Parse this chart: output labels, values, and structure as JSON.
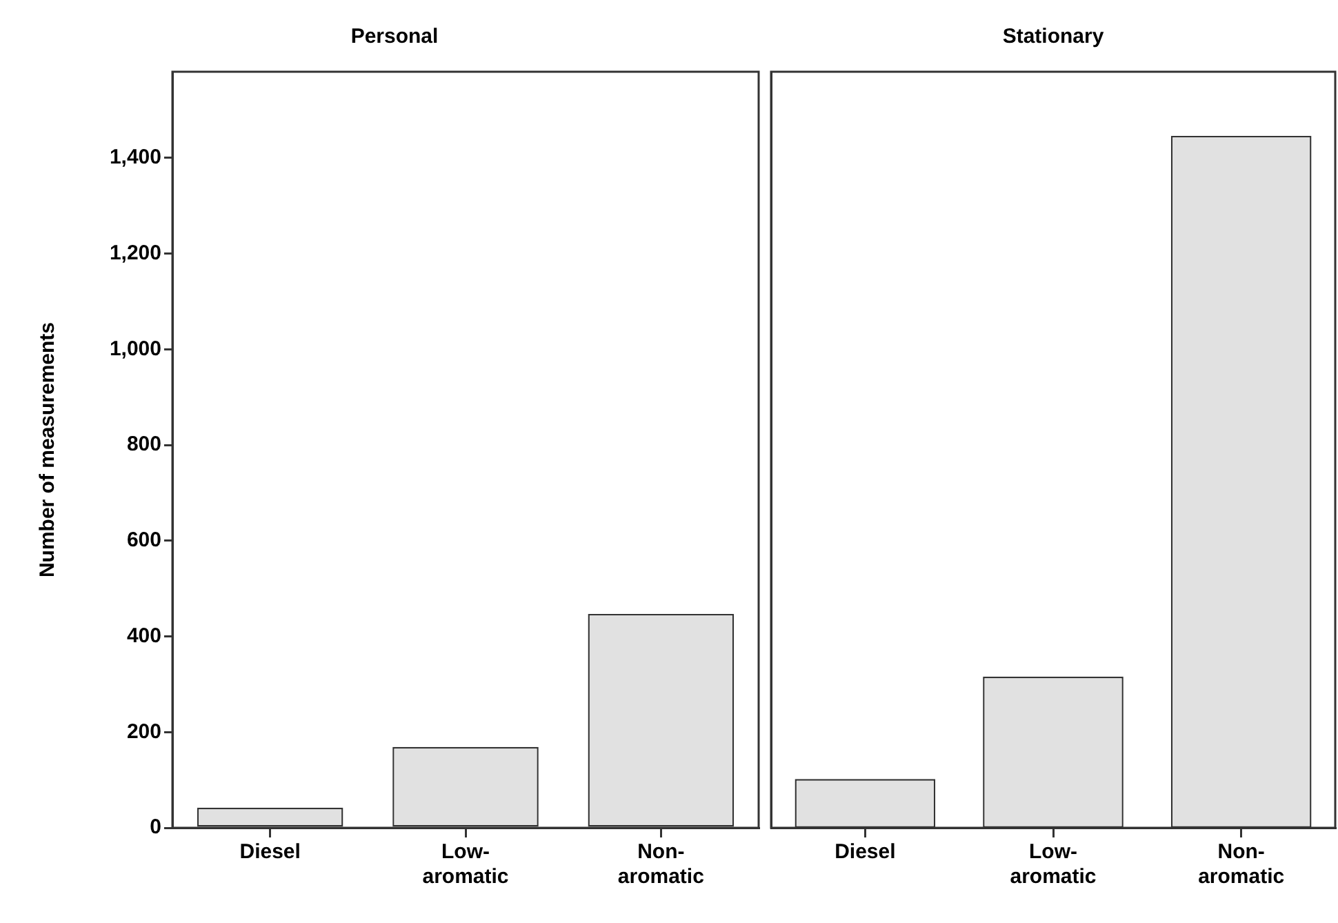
{
  "chart_data": [
    {
      "type": "bar",
      "title": "Personal",
      "ylabel": "Number of measurements",
      "categories": [
        "Diesel",
        "Low-aromatic",
        "Non-aromatic"
      ],
      "values": [
        42,
        169,
        447
      ],
      "color": "#e1e1e1",
      "ylim": [
        0,
        1580
      ],
      "yticks": [
        0,
        {
          "value": 200,
          "label": "200"
        },
        {
          "value": 400,
          "label": "400"
        },
        {
          "value": 600,
          "label": "600"
        },
        {
          "value": 800,
          "label": "800"
        },
        {
          "value": 1000,
          "label": "1,000"
        },
        {
          "value": 1200,
          "label": "1,200"
        },
        {
          "value": 1400,
          "label": "1,400"
        }
      ],
      "grid": false
    },
    {
      "type": "bar",
      "title": "Stationary",
      "categories": [
        "Diesel",
        "Low-aromatic",
        "Non-aromatic"
      ],
      "values": [
        102,
        316,
        1446
      ],
      "color": "#e1e1e1",
      "ylim": [
        0,
        1580
      ],
      "grid": false,
      "tick_labels": "x"
    }
  ]
}
